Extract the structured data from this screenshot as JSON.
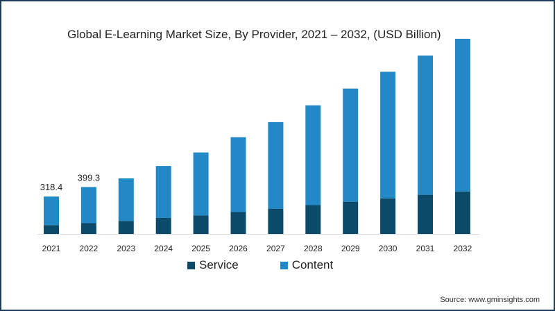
{
  "source": "Source: www.gminsights.com",
  "colors": {
    "service": "#0b4a68",
    "content": "#2389c6",
    "frame": "#1f3c5a"
  },
  "chart_data": {
    "type": "bar",
    "stacked": true,
    "title": "Global E-Learning Market Size, By Provider, 2021 – 2032, (USD Billion)",
    "categories": [
      "2021",
      "2022",
      "2023",
      "2024",
      "2025",
      "2026",
      "2027",
      "2028",
      "2029",
      "2030",
      "2031",
      "2032"
    ],
    "series": [
      {
        "name": "Service",
        "values": [
          75,
          92,
          111,
          136,
          158,
          186,
          215,
          245,
          274,
          303,
          333,
          362
        ]
      },
      {
        "name": "Content",
        "values": [
          243.4,
          307.3,
          362,
          442,
          535,
          637,
          736,
          849,
          962,
          1076,
          1184,
          1297
        ]
      }
    ],
    "data_labels": [
      {
        "category": "2021",
        "text": "318.4"
      },
      {
        "category": "2022",
        "text": "399.3"
      }
    ],
    "ylim": [
      0,
      1700
    ],
    "grid": false,
    "legend": "bottom"
  }
}
